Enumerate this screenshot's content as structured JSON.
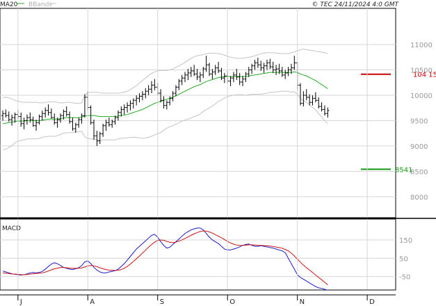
{
  "header": {
    "ma_label": "MA20",
    "bb_label": "BBands",
    "copyright": "© TEC 24/11/2024 4:0 GMT"
  },
  "colors": {
    "price": "#000000",
    "ma": "#22aa22",
    "bands": "#c4c4c4",
    "grid": "#d6d6d6",
    "resistance": "#cc0000",
    "support": "#119911",
    "macd": "#1a1acc",
    "signal": "#cc1111"
  },
  "chart_data": [
    {
      "type": "ohlc",
      "name": "price",
      "x_labels": [
        "J",
        "A",
        "S",
        "O",
        "N",
        "D"
      ],
      "y_ticks": [
        8000,
        8500,
        9000,
        9500,
        10000,
        10500,
        11000
      ],
      "y_tick_labels": [
        "8000",
        "8500",
        "9000",
        "9500",
        "10000",
        "10500",
        "11000"
      ],
      "ylim": [
        7600,
        11700
      ],
      "x_count": 118,
      "month_index": [
        5,
        28,
        51,
        74,
        97,
        120
      ],
      "bars": [
        [
          9600,
          9700,
          9500,
          9640
        ],
        [
          9640,
          9720,
          9560,
          9600
        ],
        [
          9600,
          9680,
          9480,
          9520
        ],
        [
          9520,
          9620,
          9400,
          9560
        ],
        [
          9560,
          9660,
          9460,
          9620
        ],
        [
          9620,
          9720,
          9520,
          9580
        ],
        [
          9580,
          9660,
          9380,
          9440
        ],
        [
          9440,
          9560,
          9330,
          9500
        ],
        [
          9500,
          9620,
          9420,
          9560
        ],
        [
          9560,
          9660,
          9460,
          9520
        ],
        [
          9520,
          9580,
          9380,
          9400
        ],
        [
          9400,
          9520,
          9300,
          9460
        ],
        [
          9460,
          9620,
          9420,
          9580
        ],
        [
          9580,
          9700,
          9500,
          9640
        ],
        [
          9640,
          9760,
          9560,
          9700
        ],
        [
          9700,
          9820,
          9600,
          9660
        ],
        [
          9660,
          9740,
          9540,
          9560
        ],
        [
          9560,
          9640,
          9420,
          9460
        ],
        [
          9460,
          9560,
          9360,
          9520
        ],
        [
          9520,
          9640,
          9460,
          9600
        ],
        [
          9600,
          9720,
          9520,
          9680
        ],
        [
          9680,
          9780,
          9580,
          9620
        ],
        [
          9620,
          9680,
          9440,
          9480
        ],
        [
          9480,
          9560,
          9300,
          9340
        ],
        [
          9340,
          9460,
          9260,
          9420
        ],
        [
          9420,
          9560,
          9360,
          9520
        ],
        [
          9520,
          9640,
          9440,
          9600
        ],
        [
          9600,
          10020,
          9560,
          9960
        ],
        [
          9960,
          10080,
          9700,
          9760
        ],
        [
          9760,
          9800,
          9420,
          9460
        ],
        [
          9460,
          9520,
          9120,
          9200
        ],
        [
          9200,
          9300,
          9000,
          9100
        ],
        [
          9100,
          9280,
          9040,
          9240
        ],
        [
          9240,
          9440,
          9180,
          9400
        ],
        [
          9400,
          9520,
          9300,
          9460
        ],
        [
          9460,
          9560,
          9380,
          9420
        ],
        [
          9420,
          9520,
          9360,
          9480
        ],
        [
          9480,
          9600,
          9420,
          9560
        ],
        [
          9560,
          9700,
          9500,
          9660
        ],
        [
          9660,
          9780,
          9580,
          9720
        ],
        [
          9720,
          9820,
          9620,
          9760
        ],
        [
          9760,
          9860,
          9660,
          9800
        ],
        [
          9800,
          9900,
          9700,
          9840
        ],
        [
          9840,
          9940,
          9740,
          9900
        ],
        [
          9900,
          10000,
          9800,
          9940
        ],
        [
          9940,
          10040,
          9860,
          9980
        ],
        [
          9980,
          10080,
          9900,
          10020
        ],
        [
          10020,
          10140,
          9940,
          10080
        ],
        [
          10080,
          10200,
          10000,
          10120
        ],
        [
          10120,
          10280,
          10040,
          10200
        ],
        [
          10200,
          10320,
          10100,
          10160
        ],
        [
          10160,
          10240,
          10000,
          10040
        ],
        [
          10040,
          10120,
          9860,
          9900
        ],
        [
          9900,
          9980,
          9740,
          9800
        ],
        [
          9800,
          9900,
          9720,
          9860
        ],
        [
          9860,
          9980,
          9800,
          9940
        ],
        [
          9940,
          10080,
          9880,
          10040
        ],
        [
          10040,
          10200,
          9980,
          10160
        ],
        [
          10160,
          10320,
          10100,
          10280
        ],
        [
          10280,
          10400,
          10200,
          10340
        ],
        [
          10340,
          10460,
          10260,
          10400
        ],
        [
          10400,
          10520,
          10300,
          10440
        ],
        [
          10440,
          10560,
          10360,
          10480
        ],
        [
          10480,
          10600,
          10380,
          10420
        ],
        [
          10420,
          10520,
          10300,
          10360
        ],
        [
          10360,
          10460,
          10260,
          10400
        ],
        [
          10400,
          10560,
          10340,
          10520
        ],
        [
          10520,
          10780,
          10460,
          10600
        ],
        [
          10600,
          10640,
          10380,
          10420
        ],
        [
          10420,
          10520,
          10320,
          10460
        ],
        [
          10460,
          10600,
          10400,
          10540
        ],
        [
          10540,
          10660,
          10440,
          10480
        ],
        [
          10480,
          10540,
          10300,
          10340
        ],
        [
          10340,
          10440,
          10240,
          10380
        ],
        [
          10380,
          10480,
          10240,
          10280
        ],
        [
          10280,
          10380,
          10180,
          10340
        ],
        [
          10340,
          10460,
          10260,
          10400
        ],
        [
          10400,
          10520,
          10300,
          10360
        ],
        [
          10360,
          10440,
          10200,
          10260
        ],
        [
          10260,
          10380,
          10180,
          10320
        ],
        [
          10320,
          10460,
          10260,
          10420
        ],
        [
          10420,
          10560,
          10360,
          10500
        ],
        [
          10500,
          10620,
          10420,
          10580
        ],
        [
          10580,
          10700,
          10500,
          10640
        ],
        [
          10640,
          10740,
          10540,
          10600
        ],
        [
          10600,
          10680,
          10480,
          10540
        ],
        [
          10540,
          10640,
          10440,
          10580
        ],
        [
          10580,
          10700,
          10500,
          10640
        ],
        [
          10640,
          10720,
          10520,
          10560
        ],
        [
          10560,
          10660,
          10440,
          10500
        ],
        [
          10500,
          10600,
          10400,
          10520
        ],
        [
          10520,
          10620,
          10420,
          10480
        ],
        [
          10480,
          10560,
          10360,
          10400
        ],
        [
          10400,
          10500,
          10320,
          10440
        ],
        [
          10440,
          10560,
          10380,
          10500
        ],
        [
          10500,
          10620,
          10420,
          10540
        ],
        [
          10540,
          10780,
          10500,
          10640
        ],
        [
          10640,
          10660,
          10100,
          10200
        ],
        [
          10200,
          10240,
          9800,
          9840
        ],
        [
          9840,
          10080,
          9780,
          10000
        ],
        [
          10000,
          10120,
          9900,
          9960
        ],
        [
          9960,
          10020,
          9800,
          9860
        ],
        [
          9860,
          10000,
          9800,
          9940
        ],
        [
          9940,
          10060,
          9860,
          9900
        ],
        [
          9900,
          9960,
          9740,
          9780
        ],
        [
          9780,
          9860,
          9680,
          9720
        ],
        [
          9720,
          9800,
          9600,
          9640
        ],
        [
          9640,
          9760,
          9560,
          9700
        ]
      ],
      "ma20": [
        9440,
        9450,
        9460,
        9470,
        9480,
        9490,
        9490,
        9490,
        9500,
        9500,
        9500,
        9500,
        9500,
        9510,
        9520,
        9530,
        9530,
        9530,
        9530,
        9540,
        9550,
        9560,
        9560,
        9560,
        9560,
        9560,
        9570,
        9590,
        9600,
        9600,
        9600,
        9590,
        9580,
        9580,
        9580,
        9580,
        9580,
        9580,
        9590,
        9600,
        9610,
        9620,
        9640,
        9660,
        9680,
        9700,
        9720,
        9750,
        9780,
        9810,
        9840,
        9860,
        9880,
        9900,
        9920,
        9940,
        9960,
        9990,
        10020,
        10050,
        10080,
        10110,
        10140,
        10170,
        10190,
        10210,
        10240,
        10270,
        10290,
        10310,
        10330,
        10350,
        10360,
        10370,
        10370,
        10370,
        10370,
        10370,
        10370,
        10370,
        10370,
        10380,
        10390,
        10400,
        10410,
        10420,
        10430,
        10440,
        10450,
        10450,
        10450,
        10450,
        10450,
        10450,
        10450,
        10450,
        10460,
        10450,
        10420,
        10400,
        10380,
        10350,
        10320,
        10290,
        10250,
        10210,
        10170,
        10130
      ],
      "bb_upper": [
        9950,
        9960,
        9950,
        9930,
        9900,
        9880,
        9870,
        9860,
        9860,
        9860,
        9860,
        9860,
        9850,
        9850,
        9860,
        9870,
        9870,
        9870,
        9860,
        9850,
        9850,
        9860,
        9860,
        9850,
        9840,
        9840,
        9850,
        10000,
        10050,
        10060,
        10060,
        10060,
        10050,
        10040,
        10040,
        10040,
        10040,
        10040,
        10040,
        10050,
        10060,
        10080,
        10110,
        10150,
        10190,
        10240,
        10290,
        10340,
        10390,
        10430,
        10460,
        10480,
        10490,
        10490,
        10490,
        10500,
        10520,
        10550,
        10580,
        10610,
        10650,
        10690,
        10730,
        10760,
        10780,
        10790,
        10800,
        10820,
        10830,
        10830,
        10830,
        10820,
        10810,
        10790,
        10770,
        10750,
        10740,
        10730,
        10730,
        10730,
        10740,
        10750,
        10760,
        10780,
        10800,
        10820,
        10830,
        10840,
        10840,
        10840,
        10830,
        10830,
        10820,
        10820,
        10820,
        10840,
        10850,
        10880,
        10900,
        10910,
        10900,
        10890,
        10880,
        10870,
        10860,
        10850,
        10840,
        10820
      ],
      "bb_lower": [
        8930,
        8940,
        8970,
        9010,
        9060,
        9100,
        9110,
        9120,
        9140,
        9140,
        9140,
        9140,
        9150,
        9170,
        9180,
        9190,
        9190,
        9190,
        9200,
        9230,
        9250,
        9260,
        9260,
        9270,
        9280,
        9280,
        9290,
        9180,
        9150,
        9140,
        9140,
        9120,
        9110,
        9120,
        9120,
        9120,
        9120,
        9120,
        9140,
        9150,
        9160,
        9160,
        9170,
        9170,
        9170,
        9160,
        9150,
        9160,
        9170,
        9190,
        9220,
        9240,
        9270,
        9310,
        9350,
        9380,
        9400,
        9430,
        9460,
        9490,
        9510,
        9530,
        9550,
        9580,
        9600,
        9630,
        9680,
        9720,
        9750,
        9790,
        9830,
        9880,
        9910,
        9950,
        9970,
        9990,
        10000,
        10010,
        10010,
        10010,
        10000,
        10010,
        10020,
        10020,
        10020,
        10020,
        10030,
        10040,
        10060,
        10060,
        10070,
        10070,
        10080,
        10080,
        10080,
        10060,
        10070,
        10020,
        9940,
        9890,
        9860,
        9810,
        9760,
        9710,
        9640,
        9570,
        9500,
        9440
      ],
      "resistance": {
        "value": 10415,
        "label": "104 15"
      },
      "support": {
        "value": 8541,
        "label": "8541"
      }
    },
    {
      "type": "line",
      "name": "MACD",
      "title": "MACD",
      "y_ticks": [
        150,
        50,
        -50
      ],
      "y_tick_labels": [
        "150",
        "50",
        "-50"
      ],
      "ylim": [
        -120,
        260
      ],
      "macd": [
        -20,
        -25,
        -30,
        -35,
        -38,
        -40,
        -42,
        -40,
        -36,
        -30,
        -28,
        -30,
        -28,
        -22,
        -10,
        5,
        18,
        25,
        20,
        10,
        0,
        -5,
        -10,
        -12,
        -8,
        -2,
        10,
        30,
        35,
        20,
        0,
        -15,
        -25,
        -30,
        -30,
        -25,
        -22,
        -18,
        -10,
        5,
        20,
        40,
        60,
        80,
        100,
        115,
        130,
        145,
        160,
        175,
        180,
        165,
        140,
        120,
        105,
        110,
        125,
        140,
        155,
        170,
        185,
        195,
        205,
        210,
        215,
        215,
        205,
        185,
        165,
        150,
        140,
        130,
        115,
        100,
        95,
        95,
        100,
        105,
        112,
        120,
        125,
        128,
        120,
        115,
        115,
        118,
        115,
        112,
        108,
        105,
        100,
        95,
        90,
        80,
        50,
        20,
        -10,
        -40,
        -55,
        -65,
        -75,
        -85,
        -95,
        -105,
        -112,
        -115,
        -120,
        -125
      ],
      "signal": [
        -30,
        -32,
        -34,
        -36,
        -37,
        -38,
        -40,
        -40,
        -39,
        -37,
        -35,
        -33,
        -32,
        -30,
        -26,
        -20,
        -14,
        -8,
        -4,
        -1,
        -1,
        -2,
        -4,
        -5,
        -5,
        -5,
        -3,
        2,
        8,
        10,
        8,
        4,
        -2,
        -8,
        -12,
        -15,
        -16,
        -17,
        -16,
        -12,
        -5,
        5,
        18,
        32,
        47,
        62,
        78,
        94,
        110,
        125,
        138,
        147,
        150,
        148,
        142,
        137,
        135,
        138,
        143,
        150,
        158,
        166,
        175,
        183,
        190,
        196,
        199,
        198,
        194,
        187,
        178,
        170,
        162,
        152,
        142,
        133,
        127,
        122,
        120,
        120,
        121,
        123,
        123,
        122,
        120,
        120,
        119,
        118,
        116,
        114,
        111,
        108,
        104,
        98,
        90,
        78,
        62,
        45,
        28,
        12,
        -2,
        -15,
        -28,
        -42,
        -55,
        -68,
        -82,
        -95
      ]
    }
  ]
}
